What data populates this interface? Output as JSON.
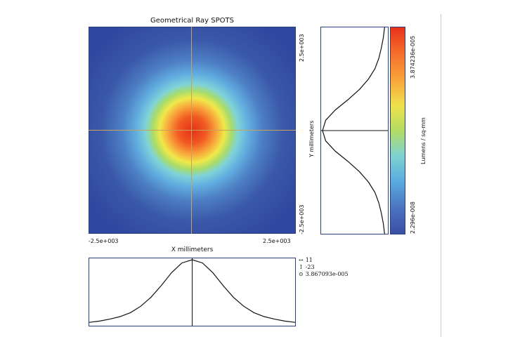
{
  "chart_data": {
    "type": "heatmap",
    "title": "Geometrical Ray SPOTS",
    "xlabel": "X millimeters",
    "ylabel": "Y millimeters",
    "xlim": [
      -2500,
      2500
    ],
    "ylim": [
      -2500,
      2500
    ],
    "x_tick_labels": [
      "-2.5e+003",
      "2.5e+003"
    ],
    "y_tick_labels": [
      "2.5e+003",
      "-2.5e+003"
    ],
    "colorbar": {
      "label": "Lumens / sq-mm",
      "max_label": "3.874236e-005",
      "min_label": "2.296e-008",
      "min": 2.296e-08,
      "max": 3.874236e-05
    },
    "profile": {
      "x": [
        -2500,
        -2250,
        -2000,
        -1750,
        -1500,
        -1250,
        -1000,
        -750,
        -500,
        -250,
        0,
        250,
        500,
        750,
        1000,
        1250,
        1500,
        1750,
        2000,
        2250,
        2500
      ],
      "relative_intensity": [
        0.03,
        0.05,
        0.08,
        0.12,
        0.18,
        0.28,
        0.42,
        0.6,
        0.8,
        0.95,
        1.0,
        0.95,
        0.8,
        0.6,
        0.42,
        0.28,
        0.18,
        0.12,
        0.08,
        0.05,
        0.03
      ]
    },
    "readout": {
      "h_offset": "11",
      "v_offset": "-23",
      "value": "3.867093e-005"
    }
  },
  "icons": {
    "h_arrow": "↔",
    "v_arrow": "↕",
    "target": "⊙"
  }
}
